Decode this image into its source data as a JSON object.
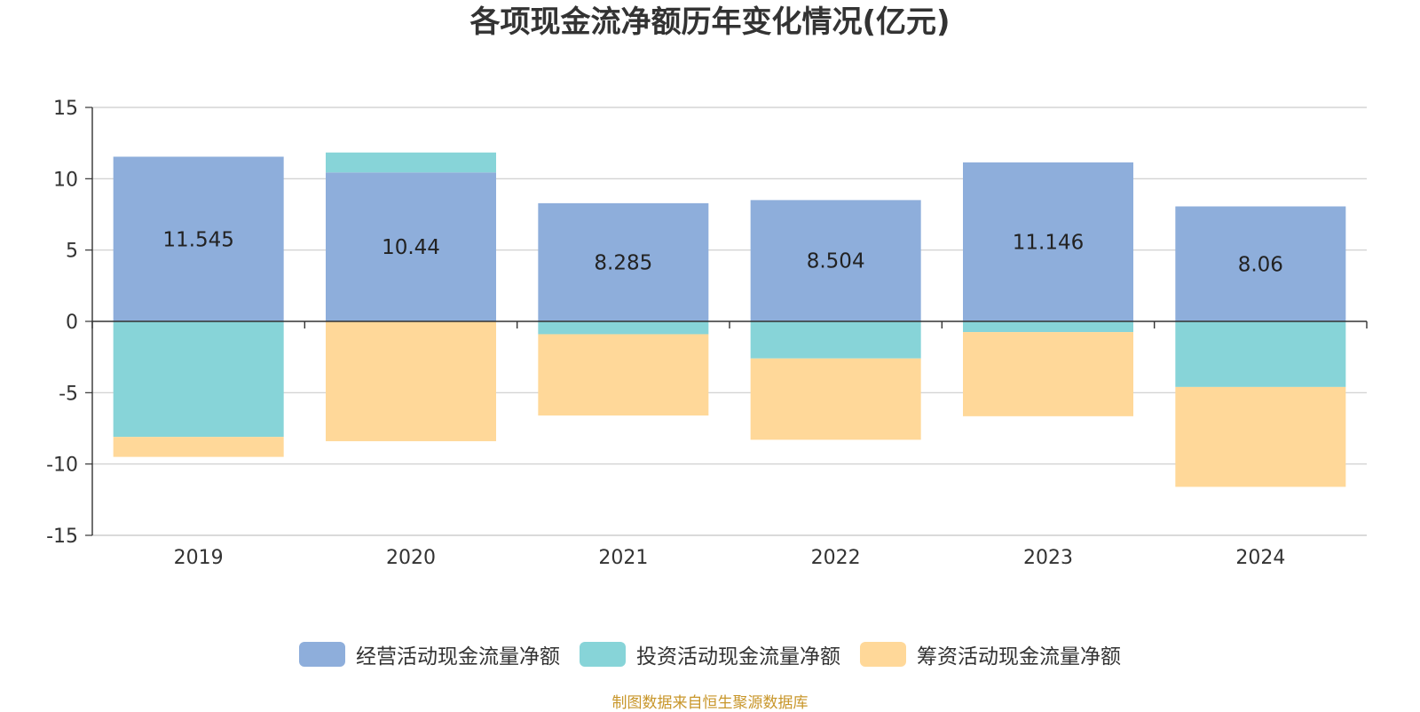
{
  "colors": {
    "operating": "#8eaedb",
    "investing": "#87d4d8",
    "financing": "#ffd899",
    "grid": "#cccccc",
    "axis": "#333333",
    "text": "#333333",
    "source": "#c8962a"
  },
  "footer": {
    "source": "制图数据来自恒生聚源数据库"
  },
  "chart_data": {
    "type": "bar",
    "stacked": true,
    "title": "各项现金流净额历年变化情况(亿元)",
    "xlabel": "",
    "ylabel": "",
    "categories": [
      "2019",
      "2020",
      "2021",
      "2022",
      "2023",
      "2024"
    ],
    "ylim": [
      -15,
      15
    ],
    "yticks": [
      15,
      10,
      5,
      0,
      -5,
      -10,
      -15
    ],
    "grid": true,
    "legend_position": "bottom",
    "series": [
      {
        "name": "经营活动现金流量净额",
        "key": "operating",
        "values": [
          11.545,
          10.44,
          8.285,
          8.504,
          11.146,
          8.06
        ],
        "labels": [
          "11.545",
          "10.44",
          "8.285",
          "8.504",
          "11.146",
          "8.06"
        ]
      },
      {
        "name": "投资活动现金流量净额",
        "key": "investing",
        "values": [
          -8.1,
          1.4,
          -0.9,
          -2.6,
          -0.75,
          -4.6
        ]
      },
      {
        "name": "筹资活动现金流量净额",
        "key": "financing",
        "values": [
          -1.4,
          -8.4,
          -5.7,
          -5.7,
          -5.9,
          -7.0
        ]
      }
    ]
  }
}
